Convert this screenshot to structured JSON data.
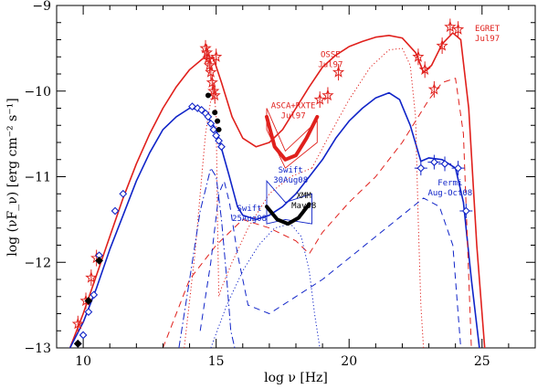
{
  "chart_data": {
    "type": "scatter",
    "title": "",
    "xlabel": "log ν [Hz]",
    "ylabel": "log (νF_ν) [erg cm⁻² s⁻¹]",
    "xlim": [
      9,
      27
    ],
    "ylim": [
      -13,
      -9
    ],
    "xticks": [
      10,
      15,
      20,
      25
    ],
    "yticks": [
      -13,
      -12,
      -11,
      -10,
      -9
    ],
    "grid": false,
    "colors": {
      "high": "#e0201c",
      "low": "#1024c8",
      "black": "#000000"
    },
    "models": [
      {
        "name": "high-state total",
        "color": "#e0201c",
        "style": "solid",
        "x": [
          9.5,
          10,
          10.5,
          11,
          11.5,
          12,
          12.5,
          13,
          13.5,
          14,
          14.5,
          14.9,
          15.2,
          15.6,
          16,
          16.5,
          17,
          17.5,
          18,
          18.5,
          19,
          19.5,
          20,
          20.5,
          21,
          21.5,
          22,
          22.5,
          22.8,
          23.1,
          23.5,
          23.9,
          24.2,
          24.5,
          24.8,
          25.1
        ],
        "y": [
          -13.0,
          -12.6,
          -12.15,
          -11.7,
          -11.25,
          -10.85,
          -10.5,
          -10.2,
          -9.95,
          -9.75,
          -9.62,
          -9.62,
          -9.9,
          -10.3,
          -10.55,
          -10.65,
          -10.6,
          -10.45,
          -10.2,
          -9.95,
          -9.72,
          -9.58,
          -9.48,
          -9.42,
          -9.37,
          -9.35,
          -9.38,
          -9.55,
          -9.78,
          -9.7,
          -9.45,
          -9.32,
          -9.4,
          -10.2,
          -11.8,
          -13.0
        ]
      },
      {
        "name": "low-state total",
        "color": "#1024c8",
        "style": "solid",
        "x": [
          9.5,
          10,
          10.5,
          11,
          11.5,
          12,
          12.5,
          13,
          13.5,
          14,
          14.5,
          15,
          15.5,
          15.8,
          16,
          16.5,
          17,
          17.5,
          18,
          18.5,
          19,
          19.5,
          20,
          20.5,
          21,
          21.5,
          21.9,
          22.3,
          22.7,
          23,
          23.5,
          24,
          24.3,
          24.6,
          24.9
        ],
        "y": [
          -13.0,
          -12.7,
          -12.3,
          -11.85,
          -11.45,
          -11.05,
          -10.72,
          -10.45,
          -10.3,
          -10.2,
          -10.22,
          -10.45,
          -11.0,
          -11.35,
          -11.45,
          -11.5,
          -11.45,
          -11.35,
          -11.2,
          -11.0,
          -10.8,
          -10.55,
          -10.35,
          -10.2,
          -10.08,
          -10.02,
          -10.1,
          -10.4,
          -10.82,
          -10.78,
          -10.8,
          -10.9,
          -11.3,
          -12.2,
          -13.0
        ]
      },
      {
        "name": "high-state synchrotron",
        "color": "#e0201c",
        "style": "dotted",
        "x": [
          13.8,
          14.2,
          14.6,
          14.9,
          15.0,
          15.05,
          15.1,
          15.2,
          15.6,
          16.2,
          17.0,
          17.8,
          18.6
        ],
        "y": [
          -13.0,
          -11.9,
          -10.5,
          -9.9,
          -10.3,
          -11.5,
          -12.4,
          -12.3,
          -12.0,
          -11.6,
          -11.2,
          -11.0,
          -10.9
        ]
      },
      {
        "name": "high-state EC",
        "color": "#e0201c",
        "style": "dotted",
        "x": [
          18.6,
          19.2,
          20,
          20.8,
          21.5,
          22,
          22.3,
          22.5,
          22.6,
          22.7,
          22.8
        ],
        "y": [
          -10.9,
          -10.55,
          -10.1,
          -9.72,
          -9.52,
          -9.5,
          -9.7,
          -10.3,
          -11.5,
          -12.5,
          -13.0
        ]
      },
      {
        "name": "high-state SSC",
        "color": "#e0201c",
        "style": "dashed",
        "x": [
          13.0,
          14.0,
          15.0,
          16.0,
          17.0,
          18.0,
          18.5,
          19.0,
          20,
          21,
          22,
          23,
          23.5,
          24,
          24.3,
          24.6
        ],
        "y": [
          -13.0,
          -12.2,
          -11.8,
          -11.5,
          -11.6,
          -11.75,
          -11.9,
          -11.65,
          -11.3,
          -11.0,
          -10.6,
          -10.1,
          -9.9,
          -9.85,
          -10.5,
          -13.0
        ]
      },
      {
        "name": "low-state synchrotron",
        "color": "#1024c8",
        "style": "dashdot",
        "x": [
          13.6,
          14.0,
          14.4,
          14.8,
          15.0,
          15.2,
          15.4,
          15.55,
          15.7
        ],
        "y": [
          -13.0,
          -12.2,
          -11.4,
          -10.9,
          -11.0,
          -11.5,
          -12.2,
          -12.8,
          -13.0
        ]
      },
      {
        "name": "low-state dashed",
        "color": "#1024c8",
        "style": "dashed",
        "x": [
          14.4,
          14.8,
          15.1,
          15.3,
          15.5,
          15.8,
          16.2,
          17.0,
          18.0,
          19.0,
          20.0,
          21.0,
          22.0,
          22.8,
          23.4,
          23.9,
          24.2
        ],
        "y": [
          -12.8,
          -12.0,
          -11.2,
          -11.05,
          -11.3,
          -11.9,
          -12.5,
          -12.6,
          -12.4,
          -12.2,
          -11.95,
          -11.7,
          -11.45,
          -11.25,
          -11.35,
          -11.8,
          -13.0
        ]
      },
      {
        "name": "low-state SSC dotted",
        "color": "#1024c8",
        "style": "dotted",
        "x": [
          14.8,
          15.4,
          16.0,
          16.6,
          17.2,
          17.8,
          18.2,
          18.5,
          18.7,
          18.9
        ],
        "y": [
          -13.0,
          -12.5,
          -12.1,
          -11.8,
          -11.6,
          -11.55,
          -11.7,
          -12.1,
          -12.6,
          -13.0
        ]
      }
    ],
    "series": [
      {
        "name": "high state data",
        "color": "#e0201c",
        "marker": "star",
        "x": [
          9.8,
          10.1,
          10.3,
          10.5,
          14.6,
          14.65,
          14.7,
          14.75,
          14.8,
          14.85,
          14.9,
          14.95,
          15.0
        ],
        "y": [
          -12.72,
          -12.45,
          -12.18,
          -11.95,
          -9.5,
          -9.55,
          -9.62,
          -9.7,
          -9.78,
          -9.9,
          -10.0,
          -10.05,
          -9.6
        ]
      },
      {
        "name": "low state radio",
        "color": "#1024c8",
        "marker": "diamond",
        "x": [
          9.8,
          10.0,
          10.2,
          10.4,
          10.6,
          11.2,
          11.5
        ],
        "y": [
          -12.95,
          -12.85,
          -12.58,
          -12.38,
          -11.92,
          -11.4,
          -11.2
        ]
      },
      {
        "name": "low state optical",
        "color": "#1024c8",
        "marker": "diamond",
        "x": [
          14.1,
          14.3,
          14.45,
          14.6,
          14.7,
          14.8,
          14.9,
          15.0,
          15.1,
          15.2
        ],
        "y": [
          -10.18,
          -10.2,
          -10.22,
          -10.26,
          -10.3,
          -10.38,
          -10.45,
          -10.52,
          -10.58,
          -10.65
        ]
      },
      {
        "name": "low state black",
        "color": "#000000",
        "marker": "diamond",
        "x": [
          9.8,
          10.2,
          10.6
        ],
        "y": [
          -12.95,
          -12.45,
          -11.98
        ]
      },
      {
        "name": "black optical",
        "color": "#000000",
        "marker": "circle",
        "x": [
          14.7,
          14.95,
          15.05,
          15.1
        ],
        "y": [
          -10.05,
          -10.25,
          -10.35,
          -10.45
        ]
      },
      {
        "name": "OSSE Jul97",
        "color": "#e0201c",
        "marker": "star",
        "x": [
          18.9,
          19.2,
          19.6
        ],
        "y": [
          -10.1,
          -10.05,
          -9.78
        ]
      },
      {
        "name": "EGRET Jul97",
        "color": "#e0201c",
        "marker": "star",
        "x": [
          22.6,
          22.85,
          23.2,
          23.5,
          23.8,
          24.1
        ],
        "y": [
          -9.6,
          -9.75,
          -9.98,
          -9.47,
          -9.25,
          -9.28
        ]
      },
      {
        "name": "Fermi Aug-Oct08",
        "color": "#1024c8",
        "marker": "diamond",
        "x": [
          22.7,
          23.2,
          23.6,
          24.1,
          24.4
        ],
        "y": [
          -10.9,
          -10.83,
          -10.85,
          -10.9,
          -11.4
        ]
      }
    ],
    "bowties": [
      {
        "name": "ASCA+RXTE Jul97",
        "color": "#e0201c",
        "thick_x": [
          16.9,
          17.2,
          17.6,
          18.0,
          18.4,
          18.8
        ],
        "thick_y": [
          -10.3,
          -10.65,
          -10.8,
          -10.75,
          -10.55,
          -10.3
        ],
        "bounds_x": [
          16.9,
          17.6,
          18.8,
          18.8,
          17.6,
          16.9
        ],
        "bounds_y": [
          -10.2,
          -10.7,
          -10.35,
          -10.6,
          -10.9,
          -10.45
        ]
      },
      {
        "name": "Swift 30Aug08",
        "color": "#1024c8",
        "bounds_x": [
          16.9,
          17.6,
          18.6,
          18.6,
          17.6,
          16.9
        ],
        "bounds_y": [
          -11.05,
          -11.3,
          -11.2,
          -11.55,
          -11.5,
          -11.55
        ]
      },
      {
        "name": "XMM May08",
        "color": "#000000",
        "thick_x": [
          16.9,
          17.3,
          17.7,
          18.1,
          18.5
        ],
        "thick_y": [
          -11.35,
          -11.5,
          -11.55,
          -11.48,
          -11.32
        ]
      }
    ],
    "annotations": [
      {
        "id": "asca",
        "lines": [
          "ASCA+RXTE",
          "Jul97"
        ],
        "x": 17.9,
        "y": -10.2,
        "color": "#e0201c"
      },
      {
        "id": "osse",
        "lines": [
          "OSSE",
          "Jul97"
        ],
        "x": 19.3,
        "y": -9.6,
        "color": "#e0201c"
      },
      {
        "id": "egret",
        "lines": [
          "EGRET",
          "Jul97"
        ],
        "x": 25.2,
        "y": -9.3,
        "color": "#e0201c"
      },
      {
        "id": "swift30",
        "lines": [
          "Swift",
          "30Aug08"
        ],
        "x": 17.8,
        "y": -10.95,
        "color": "#1024c8"
      },
      {
        "id": "swift25",
        "lines": [
          "Swift",
          "25Aug08"
        ],
        "x": 16.25,
        "y": -11.4,
        "color": "#1024c8"
      },
      {
        "id": "xmm",
        "lines": [
          "XMM",
          "May08"
        ],
        "x": 18.3,
        "y": -11.25,
        "color": "#000000"
      },
      {
        "id": "fermi",
        "lines": [
          "Fermi",
          "Aug-Oct08"
        ],
        "x": 23.8,
        "y": -11.1,
        "color": "#1024c8"
      }
    ]
  }
}
